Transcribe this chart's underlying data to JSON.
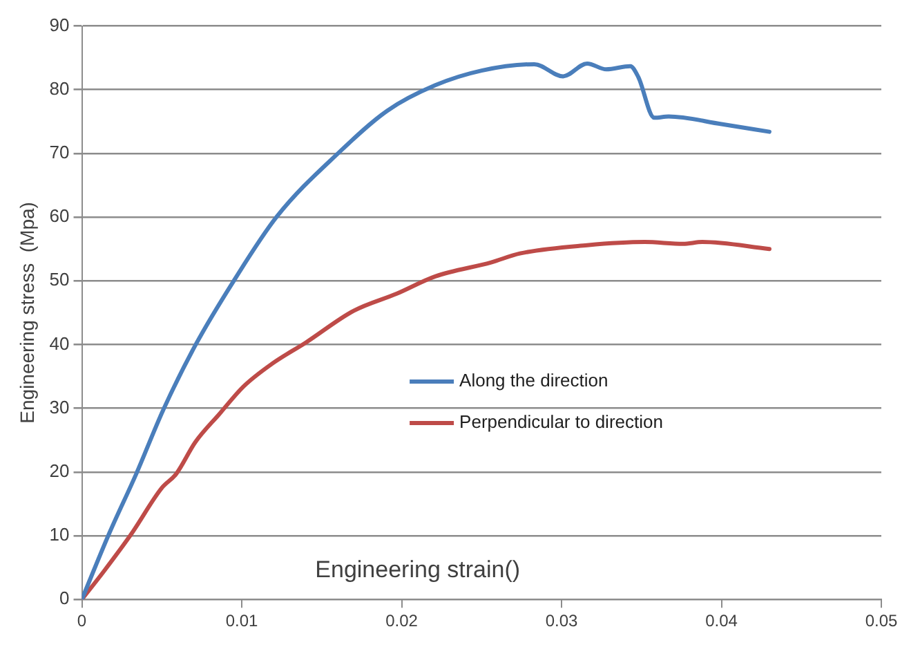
{
  "chart_data": {
    "type": "line",
    "xlabel": "Engineering strain()",
    "ylabel": "Engineering stress  (Mpa)",
    "xlim": [
      0,
      0.05
    ],
    "xticks": [
      0,
      0.01,
      0.02,
      0.03,
      0.04,
      0.05
    ],
    "ylim": [
      0,
      90
    ],
    "yticks": [
      0,
      10,
      20,
      30,
      40,
      50,
      60,
      70,
      80,
      90
    ],
    "grid": "y",
    "legend": "right",
    "marker": "none",
    "line_style": "solid",
    "series": [
      {
        "name": "Along the direction",
        "color": "#4a7ebb",
        "x": [
          0,
          0.0017,
          0.0034,
          0.0051,
          0.0071,
          0.0095,
          0.0122,
          0.0161,
          0.0191,
          0.0221,
          0.025,
          0.0283,
          0.0301,
          0.0316,
          0.0328,
          0.0343,
          0.0348,
          0.0358,
          0.0367,
          0.04,
          0.043
        ],
        "values": [
          0,
          10.3,
          19.7,
          29.8,
          39.9,
          50,
          60.1,
          70.2,
          76.7,
          80.7,
          83,
          84,
          82.1,
          84.1,
          83.2,
          83.7,
          82,
          75.6,
          75.8,
          74.6,
          73.4
        ]
      },
      {
        "name": "Perpendicular to direction",
        "color": "#be4b48",
        "x": [
          0,
          0.0014,
          0.0031,
          0.005,
          0.0059,
          0.0071,
          0.0086,
          0.0101,
          0.0119,
          0.014,
          0.017,
          0.0197,
          0.0221,
          0.0256,
          0.0274,
          0.0316,
          0.0352,
          0.0376,
          0.0388,
          0.043
        ],
        "values": [
          0,
          4.5,
          10.3,
          17.5,
          19.7,
          24.7,
          29.1,
          33.4,
          37,
          40.3,
          45.3,
          48,
          50.7,
          52.9,
          54.3,
          55.6,
          56.1,
          55.8,
          56.1,
          55
        ]
      }
    ]
  }
}
